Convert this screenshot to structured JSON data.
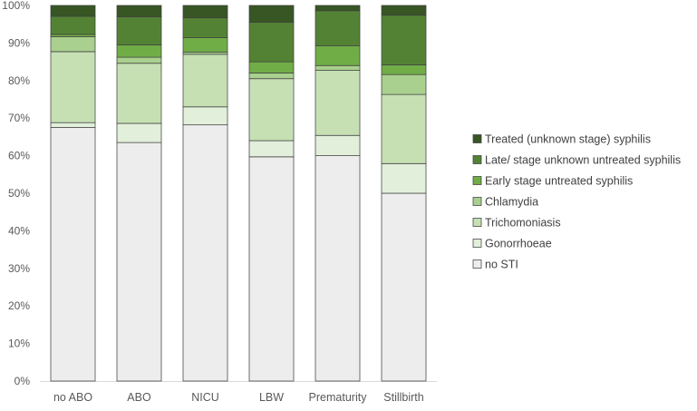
{
  "chart_data": {
    "type": "stacked_bar_100",
    "title": "",
    "xlabel": "",
    "ylabel": "",
    "ylim": [
      0,
      100
    ],
    "y_tick_labels": [
      "0%",
      "10%",
      "20%",
      "30%",
      "40%",
      "50%",
      "60%",
      "70%",
      "80%",
      "90%",
      "100%"
    ],
    "categories": [
      "no ABO",
      "ABO",
      "NICU",
      "LBW",
      "Prematurity",
      "Stillbirth"
    ],
    "legend_position": "right",
    "series": [
      {
        "name": "no STI",
        "color": "#ededed",
        "values": [
          67.5,
          63.5,
          68.2,
          59.7,
          60.0,
          50.0
        ]
      },
      {
        "name": "Gonorrhoeae",
        "color": "#e2efda",
        "values": [
          1.3,
          5.1,
          4.8,
          4.3,
          5.4,
          7.9
        ]
      },
      {
        "name": "Trichomoniasis",
        "color": "#c6e0b4",
        "values": [
          18.9,
          16.0,
          14.0,
          16.5,
          17.3,
          18.4
        ]
      },
      {
        "name": "Chlamydia",
        "color": "#a9d08e",
        "values": [
          4.0,
          1.6,
          0.6,
          1.5,
          1.3,
          5.3
        ]
      },
      {
        "name": "Early stage untreated syphilis",
        "color": "#70ad47",
        "values": [
          0.6,
          3.3,
          3.8,
          3.0,
          5.3,
          2.6
        ]
      },
      {
        "name": "Late/ stage unknown untreated syphilis",
        "color": "#548235",
        "values": [
          4.8,
          7.5,
          5.3,
          10.5,
          9.3,
          13.2
        ]
      },
      {
        "name": "Treated (unknown stage) syphilis",
        "color": "#375623",
        "values": [
          2.9,
          3.0,
          3.3,
          4.5,
          1.4,
          2.6
        ]
      }
    ]
  }
}
